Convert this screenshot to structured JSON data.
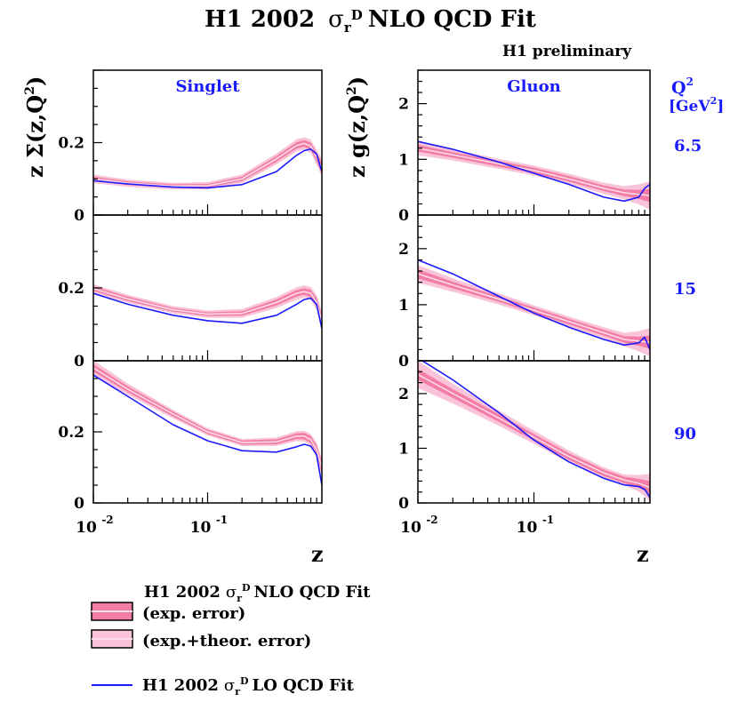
{
  "title": {
    "main": "H1 2002",
    "sigma": "σ",
    "sub": "r",
    "sup": "D",
    "rest": "NLO QCD Fit"
  },
  "preliminary": "H1 preliminary",
  "q2_header": {
    "q": "Q",
    "exp": "2",
    "unit_open": "[GeV",
    "unit_exp": "2",
    "unit_close": "]"
  },
  "colors": {
    "exp_band": "#f47da8",
    "total_band": "#f9c4d9",
    "central": "#ffe0ea",
    "lo_line": "#1a1aff",
    "label_blue": "#1a1aff"
  },
  "chart_data": [
    {
      "type": "line",
      "title": "Singlet",
      "ylabel": "z Σ(z,Q²)",
      "xlabel": "z",
      "xscale": "log",
      "xlim": [
        0.01,
        1
      ],
      "x_tick_labels": [
        "10",
        "-2",
        "10",
        "-1"
      ],
      "panels": [
        {
          "q2": "6.5",
          "ylim": [
            0,
            0.4
          ],
          "y_ticks": [
            "0",
            "0.2"
          ],
          "x": [
            0.01,
            0.02,
            0.05,
            0.1,
            0.2,
            0.4,
            0.6,
            0.7,
            0.8,
            0.9,
            1.0
          ],
          "nlo": [
            0.1,
            0.088,
            0.08,
            0.081,
            0.1,
            0.155,
            0.192,
            0.198,
            0.19,
            0.16,
            0.13
          ],
          "exp_err": [
            0.006,
            0.005,
            0.005,
            0.005,
            0.006,
            0.008,
            0.009,
            0.009,
            0.01,
            0.012,
            0.015
          ],
          "tot_err": [
            0.012,
            0.01,
            0.009,
            0.01,
            0.012,
            0.015,
            0.017,
            0.017,
            0.018,
            0.02,
            0.025
          ],
          "lo": [
            0.095,
            0.086,
            0.077,
            0.075,
            0.084,
            0.12,
            0.165,
            0.178,
            0.182,
            0.168,
            0.12
          ]
        },
        {
          "q2": "15",
          "ylim": [
            0,
            0.4
          ],
          "y_ticks": [
            "0",
            "0.2"
          ],
          "x": [
            0.01,
            0.02,
            0.05,
            0.1,
            0.2,
            0.4,
            0.6,
            0.7,
            0.8,
            0.9,
            1.0
          ],
          "nlo": [
            0.198,
            0.17,
            0.14,
            0.128,
            0.13,
            0.16,
            0.185,
            0.19,
            0.185,
            0.16,
            0.11
          ],
          "exp_err": [
            0.006,
            0.006,
            0.005,
            0.005,
            0.006,
            0.008,
            0.009,
            0.009,
            0.01,
            0.012,
            0.015
          ],
          "tot_err": [
            0.012,
            0.011,
            0.01,
            0.01,
            0.012,
            0.015,
            0.017,
            0.017,
            0.018,
            0.02,
            0.025
          ],
          "lo": [
            0.185,
            0.155,
            0.125,
            0.11,
            0.103,
            0.125,
            0.155,
            0.168,
            0.172,
            0.155,
            0.088
          ]
        },
        {
          "q2": "90",
          "ylim": [
            0,
            0.4
          ],
          "y_ticks": [
            "0",
            "0.2"
          ],
          "x": [
            0.01,
            0.02,
            0.05,
            0.1,
            0.2,
            0.4,
            0.6,
            0.7,
            0.8,
            0.9,
            1.0
          ],
          "nlo": [
            0.38,
            0.32,
            0.25,
            0.2,
            0.17,
            0.172,
            0.188,
            0.188,
            0.178,
            0.15,
            0.1
          ],
          "exp_err": [
            0.01,
            0.008,
            0.007,
            0.006,
            0.006,
            0.007,
            0.008,
            0.009,
            0.01,
            0.012,
            0.015
          ],
          "tot_err": [
            0.022,
            0.016,
            0.012,
            0.01,
            0.01,
            0.012,
            0.014,
            0.015,
            0.016,
            0.02,
            0.025
          ],
          "lo": [
            0.36,
            0.3,
            0.22,
            0.175,
            0.147,
            0.143,
            0.158,
            0.165,
            0.16,
            0.135,
            0.05
          ]
        }
      ]
    },
    {
      "type": "line",
      "title": "Gluon",
      "ylabel": "z g(z,Q²)",
      "xlabel": "z",
      "xscale": "log",
      "xlim": [
        0.01,
        1
      ],
      "x_tick_labels": [
        "10",
        "-2",
        "10",
        "-1"
      ],
      "panels": [
        {
          "q2": "6.5",
          "ylim": [
            0,
            2.6
          ],
          "y_ticks": [
            "0",
            "1",
            "2"
          ],
          "x": [
            0.01,
            0.02,
            0.05,
            0.1,
            0.2,
            0.4,
            0.6,
            0.8,
            0.9,
            1.0
          ],
          "nlo": [
            1.2,
            1.08,
            0.92,
            0.8,
            0.65,
            0.48,
            0.4,
            0.37,
            0.36,
            0.35
          ],
          "exp_err": [
            0.06,
            0.05,
            0.05,
            0.05,
            0.05,
            0.05,
            0.06,
            0.08,
            0.1,
            0.12
          ],
          "tot_err": [
            0.13,
            0.1,
            0.09,
            0.09,
            0.09,
            0.1,
            0.12,
            0.18,
            0.22,
            0.25
          ],
          "lo": [
            1.32,
            1.18,
            0.95,
            0.75,
            0.55,
            0.32,
            0.25,
            0.32,
            0.48,
            0.55
          ]
        },
        {
          "q2": "15",
          "ylim": [
            0,
            2.6
          ],
          "y_ticks": [
            "0",
            "1",
            "2"
          ],
          "x": [
            0.01,
            0.02,
            0.05,
            0.1,
            0.2,
            0.4,
            0.6,
            0.8,
            0.9,
            1.0
          ],
          "nlo": [
            1.55,
            1.35,
            1.1,
            0.9,
            0.7,
            0.5,
            0.38,
            0.35,
            0.34,
            0.33
          ],
          "exp_err": [
            0.08,
            0.06,
            0.05,
            0.05,
            0.05,
            0.05,
            0.06,
            0.08,
            0.1,
            0.12
          ],
          "tot_err": [
            0.16,
            0.12,
            0.1,
            0.09,
            0.09,
            0.1,
            0.12,
            0.18,
            0.22,
            0.25
          ],
          "lo": [
            1.8,
            1.55,
            1.15,
            0.85,
            0.6,
            0.38,
            0.28,
            0.32,
            0.42,
            0.2
          ]
        },
        {
          "q2": "90",
          "ylim": [
            0,
            2.6
          ],
          "y_ticks": [
            "0",
            "1",
            "2"
          ],
          "x": [
            0.01,
            0.02,
            0.05,
            0.1,
            0.2,
            0.4,
            0.6,
            0.8,
            0.9,
            1.0
          ],
          "nlo": [
            2.35,
            2.0,
            1.55,
            1.2,
            0.85,
            0.55,
            0.42,
            0.36,
            0.32,
            0.28
          ],
          "exp_err": [
            0.1,
            0.08,
            0.07,
            0.06,
            0.06,
            0.06,
            0.06,
            0.08,
            0.1,
            0.12
          ],
          "tot_err": [
            0.25,
            0.18,
            0.14,
            0.12,
            0.11,
            0.1,
            0.1,
            0.15,
            0.2,
            0.25
          ],
          "lo": [
            2.65,
            2.25,
            1.65,
            1.15,
            0.75,
            0.45,
            0.33,
            0.3,
            0.25,
            0.1
          ]
        }
      ]
    }
  ],
  "legend": {
    "header": {
      "main": "H1 2002",
      "sigma": "σ",
      "sub": "r",
      "sup": "D",
      "rest": "NLO QCD Fit"
    },
    "exp": "(exp. error)",
    "total": "(exp.+theor. error)",
    "lo": {
      "main": "H1 2002",
      "sigma": "σ",
      "sub": "r",
      "sup": "D",
      "rest": "LO QCD Fit"
    }
  }
}
